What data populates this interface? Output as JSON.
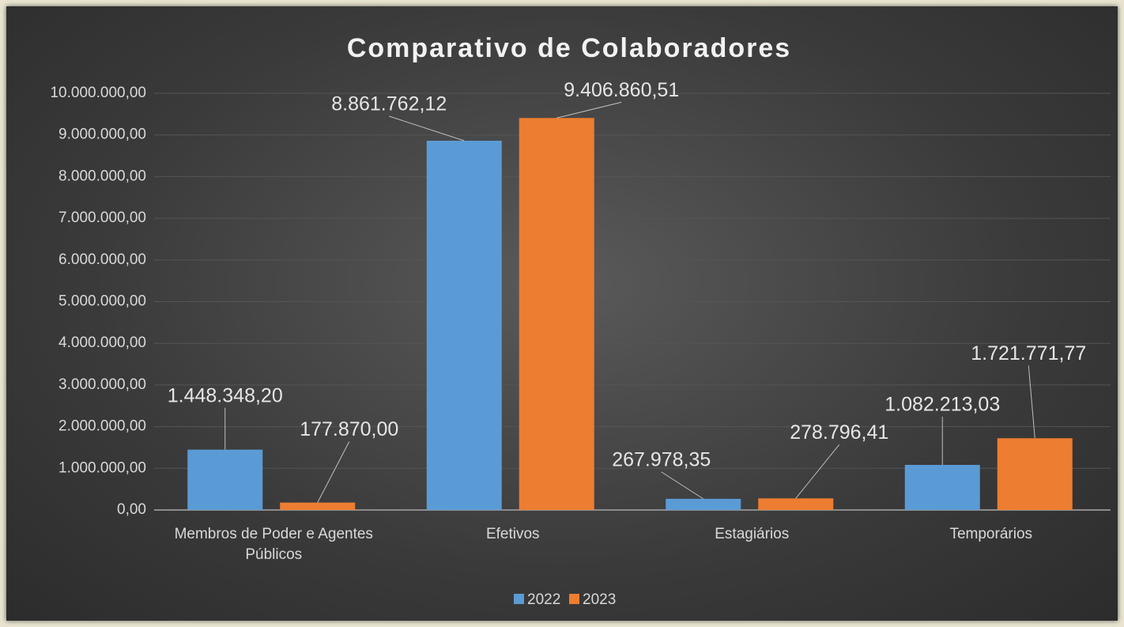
{
  "chart_data": {
    "type": "bar",
    "title": "Comparativo de Colaboradores",
    "categories": [
      "Membros de Poder e Agentes Públicos",
      "Efetivos",
      "Estagiários",
      "Temporários"
    ],
    "series": [
      {
        "name": "2022",
        "color": "#5b9bd5",
        "values": [
          1448348.2,
          8861762.12,
          267978.35,
          1082213.03
        ],
        "value_labels": [
          "1.448.348,20",
          "8.861.762,12",
          "267.978,35",
          "1.082.213,03"
        ]
      },
      {
        "name": "2023",
        "color": "#ed7d31",
        "values": [
          177870.0,
          9406860.51,
          278796.41,
          1721771.77
        ],
        "value_labels": [
          "177.870,00",
          "9.406.860,51",
          "278.796,41",
          "1.721.771,77"
        ]
      }
    ],
    "ylim": [
      0,
      10000000
    ],
    "yticks": [
      {
        "value": 0,
        "label": "0,00"
      },
      {
        "value": 1000000,
        "label": "1.000.000,00"
      },
      {
        "value": 2000000,
        "label": "2.000.000,00"
      },
      {
        "value": 3000000,
        "label": "3.000.000,00"
      },
      {
        "value": 4000000,
        "label": "4.000.000,00"
      },
      {
        "value": 5000000,
        "label": "5.000.000,00"
      },
      {
        "value": 6000000,
        "label": "6.000.000,00"
      },
      {
        "value": 7000000,
        "label": "7.000.000,00"
      },
      {
        "value": 8000000,
        "label": "8.000.000,00"
      },
      {
        "value": 9000000,
        "label": "9.000.000,00"
      },
      {
        "value": 10000000,
        "label": "10.000.000,00"
      }
    ],
    "grid": true,
    "legend": "bottom"
  }
}
